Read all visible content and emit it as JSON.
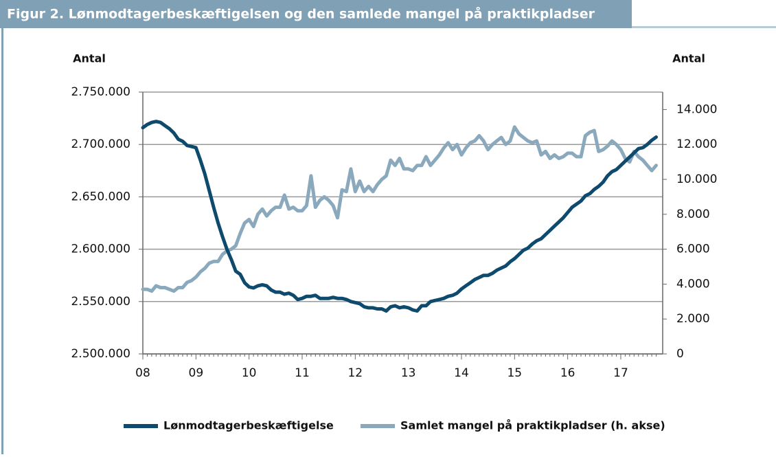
{
  "chart_data": {
    "type": "line",
    "title": "Figur 2. Lønmodtagerbeskæftigelsen og den samlede mangel på praktikpladser",
    "y_label": "Antal",
    "y2_label": "Antal",
    "categories": [
      "08",
      null,
      null,
      null,
      null,
      null,
      null,
      null,
      null,
      null,
      null,
      null,
      "09",
      null,
      null,
      null,
      null,
      null,
      null,
      null,
      null,
      null,
      null,
      null,
      "10",
      null,
      null,
      null,
      null,
      null,
      null,
      null,
      null,
      null,
      null,
      null,
      "11",
      null,
      null,
      null,
      null,
      null,
      null,
      null,
      null,
      null,
      null,
      null,
      "12",
      null,
      null,
      null,
      null,
      null,
      null,
      null,
      null,
      null,
      null,
      null,
      "13",
      null,
      null,
      null,
      null,
      null,
      null,
      null,
      null,
      null,
      null,
      null,
      "14",
      null,
      null,
      null,
      null,
      null,
      null,
      null,
      null,
      null,
      null,
      null,
      "15",
      null,
      null,
      null,
      null,
      null,
      null,
      null,
      null,
      null,
      null,
      null,
      "16",
      null,
      null,
      null,
      null,
      null,
      null,
      null,
      null,
      null,
      null,
      null,
      "17",
      null,
      null,
      null,
      null,
      null,
      null,
      null,
      null
    ],
    "ylim": [
      2500000,
      2750000
    ],
    "yticks": [
      {
        "value": 2500000,
        "label": "2.500.000"
      },
      {
        "value": 2550000,
        "label": "2.550.000"
      },
      {
        "value": 2600000,
        "label": "2.600.000"
      },
      {
        "value": 2650000,
        "label": "2.650.000"
      },
      {
        "value": 2700000,
        "label": "2.700.000"
      },
      {
        "value": 2750000,
        "label": "2.750.000"
      }
    ],
    "y2lim": [
      0,
      15000
    ],
    "y2ticks": [
      0,
      {
        "value": 2000,
        "label": "2.000"
      },
      {
        "value": 4000,
        "label": "4.000"
      },
      {
        "value": 6000,
        "label": "6.000"
      },
      {
        "value": 8000,
        "label": "8.000"
      },
      {
        "value": 10000,
        "label": "10.000"
      },
      {
        "value": 12000,
        "label": "12.000"
      },
      {
        "value": 14000,
        "label": "14.000"
      }
    ],
    "grid": true,
    "series": [
      {
        "name": "Lønmodtagerbeskæftigelse",
        "color": "#0d4a6e",
        "values": [
          2716000,
          2719000,
          2721000,
          2722000,
          2721000,
          2718000,
          2715000,
          2711000,
          2705000,
          2703000,
          2699000,
          2698000,
          2697000,
          2685000,
          2672000,
          2656000,
          2640000,
          2625000,
          2612000,
          2600000,
          2590000,
          2579000,
          2576000,
          2568000,
          2564000,
          2563000,
          2565000,
          2566000,
          2565000,
          2561000,
          2559000,
          2559000,
          2557000,
          2558000,
          2556000,
          2552000,
          2553000,
          2555000,
          2555000,
          2556000,
          2553000,
          2553000,
          2553000,
          2554000,
          2553000,
          2553000,
          2552000,
          2550000,
          2549000,
          2548000,
          2545000,
          2544000,
          2544000,
          2543000,
          2543000,
          2541000,
          2545000,
          2546000,
          2544000,
          2545000,
          2544000,
          2542000,
          2541000,
          2546000,
          2546000,
          2550000,
          2551000,
          2552000,
          2553000,
          2555000,
          2556000,
          2558000,
          2562000,
          2565000,
          2568000,
          2571000,
          2573000,
          2575000,
          2575000,
          2577000,
          2580000,
          2582000,
          2584000,
          2588000,
          2591000,
          2595000,
          2599000,
          2601000,
          2605000,
          2608000,
          2610000,
          2614000,
          2618000,
          2622000,
          2626000,
          2630000,
          2635000,
          2640000,
          2643000,
          2646000,
          2651000,
          2653000,
          2657000,
          2660000,
          2664000,
          2670000,
          2674000,
          2676000,
          2680000,
          2684000,
          2688000,
          2692000,
          2696000,
          2697000,
          2700000,
          2704000,
          2707000
        ]
      },
      {
        "name": "Samlet mangel på praktikpladser (h. akse)",
        "color": "#8aa9bd",
        "axis": "y2",
        "values": [
          3700,
          3700,
          3600,
          3900,
          3800,
          3800,
          3700,
          3600,
          3800,
          3800,
          4100,
          4200,
          4400,
          4700,
          4900,
          5200,
          5300,
          5300,
          5700,
          5900,
          6000,
          6200,
          6900,
          7500,
          7700,
          7300,
          8000,
          8300,
          7900,
          8200,
          8400,
          8400,
          9100,
          8300,
          8400,
          8200,
          8200,
          8500,
          10200,
          8400,
          8800,
          9000,
          8800,
          8500,
          7800,
          9400,
          9300,
          10600,
          9300,
          9900,
          9300,
          9600,
          9300,
          9700,
          10000,
          10200,
          11100,
          10800,
          11200,
          10600,
          10600,
          10500,
          10800,
          10800,
          11300,
          10800,
          11100,
          11400,
          11800,
          12100,
          11700,
          12000,
          11400,
          11800,
          12100,
          12200,
          12500,
          12200,
          11700,
          12000,
          12200,
          12400,
          12000,
          12200,
          13000,
          12600,
          12400,
          12200,
          12100,
          12200,
          11400,
          11600,
          11200,
          11400,
          11200,
          11300,
          11500,
          11500,
          11300,
          11300,
          12500,
          12700,
          12800,
          11600,
          11700,
          11900,
          12200,
          12000,
          11700,
          11200,
          11000,
          11600,
          11300,
          11100,
          10800,
          10500,
          10800
        ]
      }
    ]
  }
}
